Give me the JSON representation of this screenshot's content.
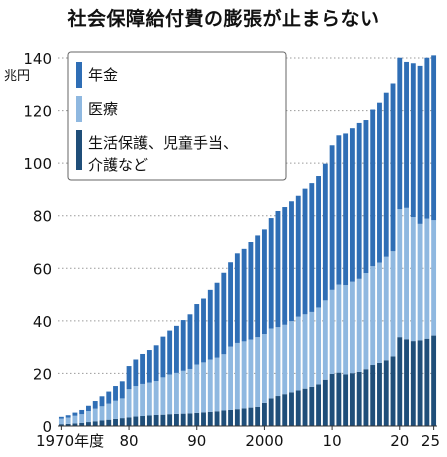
{
  "chart_data": {
    "type": "bar",
    "stacked": true,
    "title": "社会保障給付費の膨張が止まらない",
    "ylabel": "兆円",
    "ylim": [
      0,
      140
    ],
    "yticks": [
      0,
      20,
      40,
      60,
      80,
      100,
      120,
      140
    ],
    "xtick_labels": [
      {
        "year": 1970,
        "label": "1970年度"
      },
      {
        "year": 1980,
        "label": "80"
      },
      {
        "year": 1990,
        "label": "90"
      },
      {
        "year": 2000,
        "label": "2000"
      },
      {
        "year": 2010,
        "label": "10"
      },
      {
        "year": 2020,
        "label": "20"
      },
      {
        "year": 2025,
        "label": "25"
      }
    ],
    "grid": "horizontal-dotted",
    "legend_position": "top-left",
    "categories": [
      1970,
      1971,
      1972,
      1973,
      1974,
      1975,
      1976,
      1977,
      1978,
      1979,
      1980,
      1981,
      1982,
      1983,
      1984,
      1985,
      1986,
      1987,
      1988,
      1989,
      1990,
      1991,
      1992,
      1993,
      1994,
      1995,
      1996,
      1997,
      1998,
      1999,
      2000,
      2001,
      2002,
      2003,
      2004,
      2005,
      2006,
      2007,
      2008,
      2009,
      2010,
      2011,
      2012,
      2013,
      2014,
      2015,
      2016,
      2017,
      2018,
      2019,
      2020,
      2021,
      2022,
      2023,
      2024,
      2025
    ],
    "series": [
      {
        "name": "生活保護、児童手当、介護など",
        "color": "#1f4e79",
        "values": [
          0.7,
          0.8,
          1.0,
          1.2,
          1.5,
          1.8,
          2.1,
          2.4,
          2.7,
          3.0,
          3.3,
          3.6,
          3.8,
          4.0,
          4.2,
          4.3,
          4.5,
          4.6,
          4.7,
          4.8,
          5.0,
          5.2,
          5.4,
          5.6,
          5.9,
          6.1,
          6.4,
          6.7,
          7.0,
          7.3,
          8.8,
          10.5,
          11.4,
          12.1,
          12.8,
          13.5,
          14.2,
          14.9,
          15.8,
          17.6,
          19.8,
          20.3,
          19.6,
          20.1,
          20.6,
          21.6,
          23.2,
          24.0,
          25.0,
          26.5,
          33.8,
          33.0,
          32.3,
          32.6,
          33.2,
          34.4
        ]
      },
      {
        "name": "医療",
        "color": "#8fb8e0",
        "values": [
          2.1,
          2.4,
          2.9,
          3.3,
          4.2,
          4.8,
          5.4,
          6.1,
          6.9,
          7.5,
          10.7,
          11.6,
          12.2,
          12.5,
          12.9,
          14.2,
          15.1,
          15.6,
          16.3,
          16.9,
          18.4,
          19.0,
          19.9,
          20.4,
          21.4,
          24.1,
          25.2,
          25.5,
          25.9,
          26.5,
          26.2,
          26.6,
          26.2,
          26.4,
          27.1,
          28.1,
          28.3,
          28.5,
          29.3,
          30.2,
          32.0,
          33.5,
          34.0,
          34.8,
          35.4,
          36.6,
          37.6,
          38.2,
          39.4,
          40.0,
          48.7,
          50.0,
          47.2,
          44.3,
          45.7,
          43.9
        ]
      },
      {
        "name": "年金",
        "color": "#2f6eb5",
        "values": [
          0.7,
          0.9,
          1.2,
          1.6,
          2.0,
          2.9,
          3.8,
          4.6,
          5.6,
          6.5,
          8.8,
          10.1,
          11.4,
          12.4,
          13.6,
          15.5,
          16.7,
          17.9,
          19.3,
          20.8,
          23.0,
          24.3,
          26.5,
          28.5,
          31.0,
          32.1,
          34.1,
          35.2,
          37.1,
          38.7,
          39.8,
          42.0,
          44.2,
          44.8,
          45.6,
          46.0,
          47.8,
          49.0,
          50.0,
          52.0,
          55.0,
          56.8,
          57.7,
          58.4,
          59.3,
          58.2,
          59.6,
          60.8,
          62.4,
          63.8,
          57.6,
          55.5,
          58.5,
          60.1,
          61.2,
          62.7
        ]
      }
    ]
  }
}
